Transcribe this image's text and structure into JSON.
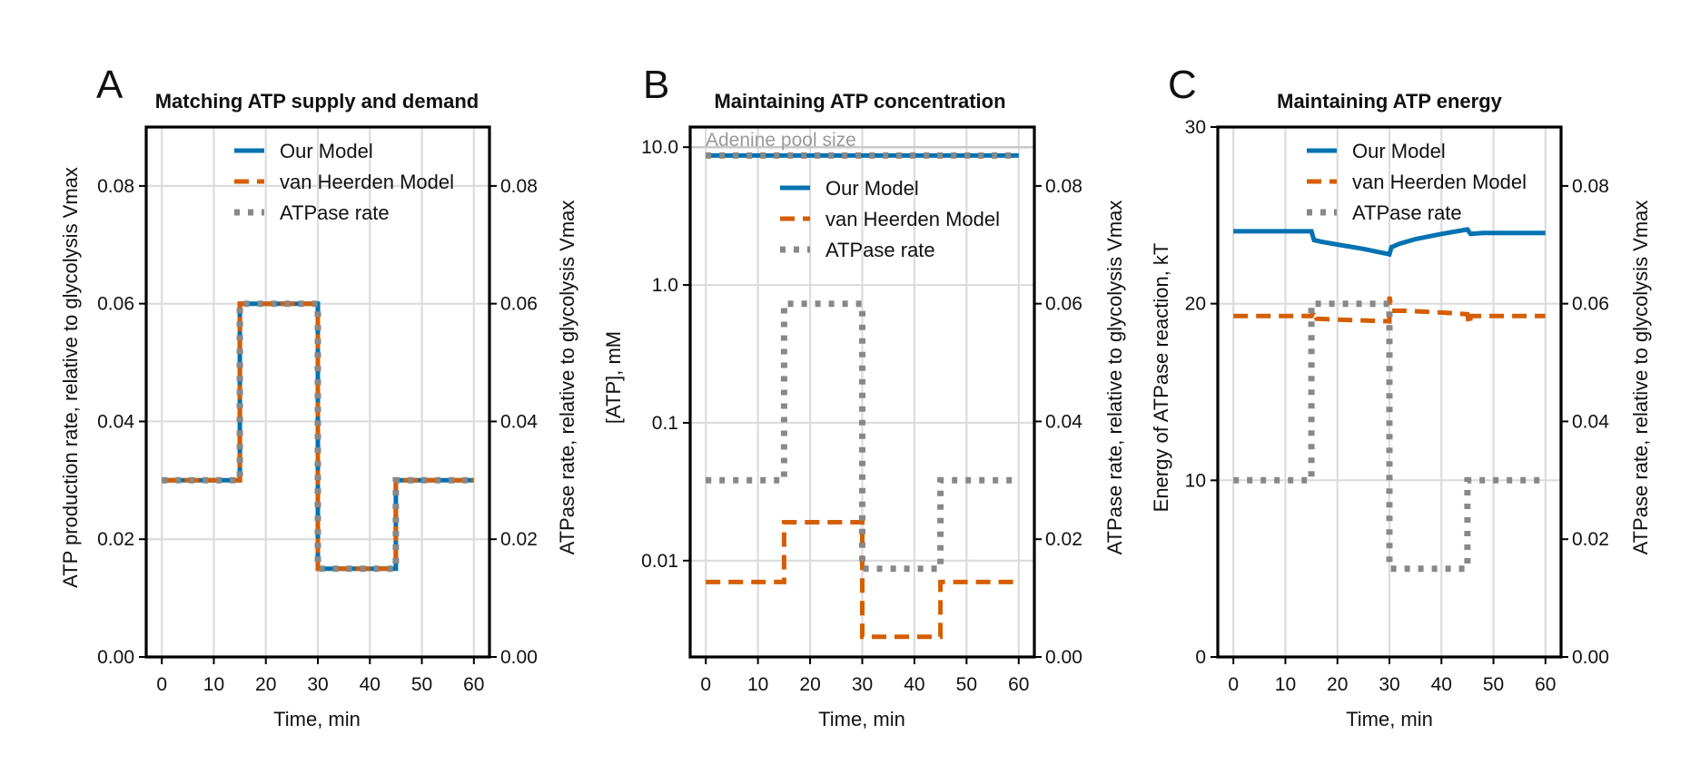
{
  "colors": {
    "our": "#0072b2",
    "vanh": "#d55e00",
    "atpase": "#888888",
    "grid": "#dcdcdc",
    "pool": "#999999"
  },
  "legend": [
    "Our Model",
    "van Heerden Model",
    "ATPase rate"
  ],
  "chart_data": [
    {
      "panel": "A",
      "title": "Matching ATP supply and demand",
      "type": "line",
      "xlabel": "Time, min",
      "ylabel": "ATP production rate, relative to glycolysis Vmax",
      "y2label": "ATPase rate, relative to glycolysis Vmax",
      "xlim": [
        -3,
        63
      ],
      "ylim": [
        0,
        0.09
      ],
      "y2lim": [
        0,
        0.09
      ],
      "xticks": [
        0,
        10,
        20,
        30,
        40,
        50,
        60
      ],
      "yticks": [
        0,
        0.02,
        0.04,
        0.06,
        0.08
      ],
      "yticklabels": [
        "0.00",
        "0.02",
        "0.04",
        "0.06",
        "0.08"
      ],
      "y2ticks": [
        0,
        0.02,
        0.04,
        0.06,
        0.08
      ],
      "y2ticklabels": [
        "0.00",
        "0.02",
        "0.04",
        "0.06",
        "0.08"
      ],
      "legend_position": "top-center",
      "series": [
        {
          "name": "Our Model",
          "axis": "y",
          "style": "solid",
          "x": [
            0,
            15,
            15,
            30,
            30,
            45,
            45,
            60
          ],
          "y": [
            0.03,
            0.03,
            0.06,
            0.06,
            0.015,
            0.015,
            0.03,
            0.03
          ]
        },
        {
          "name": "van Heerden Model",
          "axis": "y",
          "style": "dashed",
          "x": [
            0,
            15,
            15,
            30,
            30,
            45,
            45,
            60
          ],
          "y": [
            0.03,
            0.03,
            0.06,
            0.06,
            0.015,
            0.015,
            0.03,
            0.03
          ]
        },
        {
          "name": "ATPase rate",
          "axis": "y2",
          "style": "dotted",
          "x": [
            0,
            15,
            15,
            30,
            30,
            45,
            45,
            60
          ],
          "y": [
            0.03,
            0.03,
            0.06,
            0.06,
            0.015,
            0.015,
            0.03,
            0.03
          ]
        }
      ]
    },
    {
      "panel": "B",
      "title": "Maintaining ATP concentration",
      "type": "line",
      "xlabel": "Time, min",
      "ylabel": "[ATP], mM",
      "y2label": "ATPase rate, relative to glycolysis Vmax",
      "yscale": "log",
      "xlim": [
        -3,
        63
      ],
      "ylim": [
        0.002,
        14
      ],
      "y2lim": [
        0,
        0.09
      ],
      "xticks": [
        0,
        10,
        20,
        30,
        40,
        50,
        60
      ],
      "yticks": [
        0.01,
        0.1,
        1.0,
        10.0
      ],
      "yticklabels": [
        "0.01",
        "0.1",
        "1.0",
        "10.0"
      ],
      "y2ticks": [
        0,
        0.02,
        0.04,
        0.06,
        0.08
      ],
      "y2ticklabels": [
        "0.00",
        "0.02",
        "0.04",
        "0.06",
        "0.08"
      ],
      "legend_position": "upper-right",
      "annotation": {
        "text": "Adenine pool size",
        "y": 10.0
      },
      "series": [
        {
          "name": "Our Model",
          "axis": "y",
          "style": "solid",
          "x": [
            0,
            60
          ],
          "y": [
            8.7,
            8.7
          ]
        },
        {
          "name": "van Heerden Model",
          "axis": "y",
          "style": "dashed",
          "x": [
            0,
            15,
            15,
            30,
            30,
            45,
            45,
            60
          ],
          "y": [
            0.007,
            0.007,
            0.019,
            0.019,
            0.0028,
            0.0028,
            0.007,
            0.007
          ]
        },
        {
          "name": "ATPase rate",
          "axis": "y2",
          "style": "dotted",
          "x": [
            0,
            15,
            15,
            30,
            30,
            45,
            45,
            60
          ],
          "y": [
            0.03,
            0.03,
            0.06,
            0.06,
            0.015,
            0.015,
            0.03,
            0.03
          ]
        },
        {
          "name": "",
          "axis": "y",
          "style": "dotted",
          "x": [
            0,
            60
          ],
          "y": [
            8.7,
            8.7
          ]
        }
      ]
    },
    {
      "panel": "C",
      "title": "Maintaining ATP energy",
      "type": "line",
      "xlabel": "Time, min",
      "ylabel": "Energy of ATPase reaction, kT",
      "y2label": "ATPase rate, relative to glycolysis Vmax",
      "xlim": [
        -3,
        63
      ],
      "ylim": [
        0,
        30
      ],
      "y2lim": [
        0,
        0.09
      ],
      "xticks": [
        0,
        10,
        20,
        30,
        40,
        50,
        60
      ],
      "yticks": [
        0,
        10,
        20,
        30
      ],
      "yticklabels": [
        "0",
        "10",
        "20",
        "30"
      ],
      "y2ticks": [
        0,
        0.02,
        0.04,
        0.06,
        0.08
      ],
      "y2ticklabels": [
        "0.00",
        "0.02",
        "0.04",
        "0.06",
        "0.08"
      ],
      "legend_position": "top-center",
      "series": [
        {
          "name": "Our Model",
          "axis": "y",
          "style": "solid",
          "x": [
            0,
            15,
            15.5,
            17,
            20,
            25,
            30,
            30.4,
            32,
            35,
            40,
            45,
            45.6,
            48,
            60
          ],
          "y": [
            24.1,
            24.1,
            23.6,
            23.5,
            23.35,
            23.1,
            22.8,
            23.2,
            23.4,
            23.65,
            23.95,
            24.2,
            23.95,
            24.0,
            24.0
          ]
        },
        {
          "name": "van Heerden Model",
          "axis": "y",
          "style": "dashed",
          "x": [
            0,
            15,
            15.6,
            16,
            20,
            30,
            30,
            30.5,
            33,
            40,
            45,
            45.3,
            45.7,
            47,
            60
          ],
          "y": [
            19.3,
            19.3,
            19.6,
            19.15,
            19.1,
            19.0,
            20.4,
            19.6,
            19.6,
            19.5,
            19.4,
            18.8,
            19.3,
            19.3,
            19.3
          ]
        },
        {
          "name": "ATPase rate",
          "axis": "y2",
          "style": "dotted",
          "x": [
            0,
            15,
            15,
            30,
            30,
            45,
            45,
            60
          ],
          "y": [
            0.03,
            0.03,
            0.06,
            0.06,
            0.015,
            0.015,
            0.03,
            0.03
          ]
        }
      ]
    }
  ]
}
